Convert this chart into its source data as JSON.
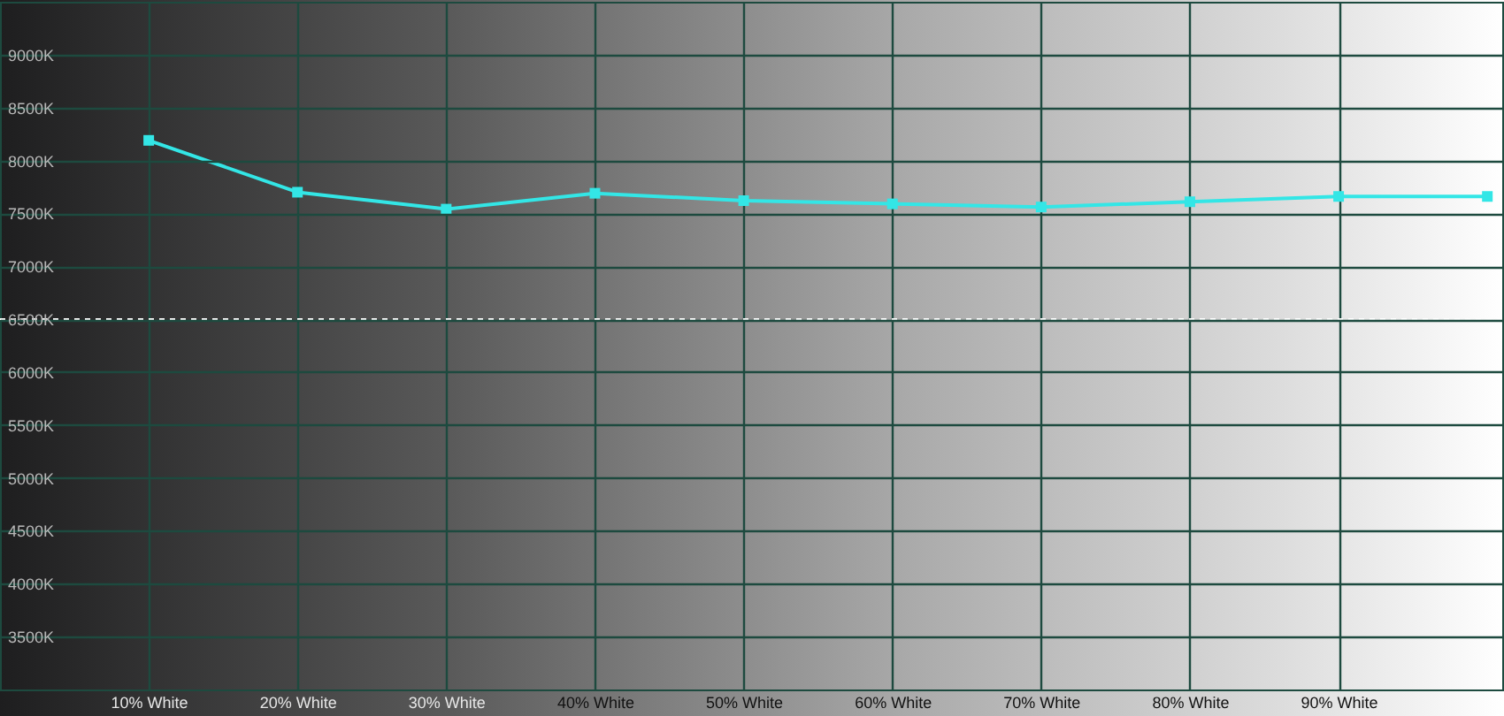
{
  "chart_data": {
    "type": "line",
    "x": [
      10,
      20,
      30,
      40,
      50,
      60,
      70,
      80,
      90,
      100
    ],
    "series": [
      {
        "color": "#33e6e6",
        "values": [
          8190,
          7700,
          7540,
          7690,
          7620,
          7590,
          7560,
          7610,
          7660,
          7660
        ]
      }
    ],
    "xlim": [
      0,
      101
    ],
    "xticks": [
      {
        "value": 10,
        "label": "10% White"
      },
      {
        "value": 20,
        "label": "20% White"
      },
      {
        "value": 30,
        "label": "30% White"
      },
      {
        "value": 40,
        "label": "40% White"
      },
      {
        "value": 50,
        "label": "50% White"
      },
      {
        "value": 60,
        "label": "60% White"
      },
      {
        "value": 70,
        "label": "70% White"
      },
      {
        "value": 80,
        "label": "80% White"
      },
      {
        "value": 90,
        "label": "90% White"
      }
    ],
    "ylim": [
      3000,
      9500
    ],
    "yticks": [
      {
        "value": 3500,
        "label": "3500K"
      },
      {
        "value": 4000,
        "label": "4000K"
      },
      {
        "value": 4500,
        "label": "4500K"
      },
      {
        "value": 5000,
        "label": "5000K"
      },
      {
        "value": 5500,
        "label": "5500K"
      },
      {
        "value": 6000,
        "label": "6000K"
      },
      {
        "value": 6500,
        "label": "6500K"
      },
      {
        "value": 7000,
        "label": "7000K"
      },
      {
        "value": 7500,
        "label": "7500K"
      },
      {
        "value": 8000,
        "label": "8000K"
      },
      {
        "value": 8500,
        "label": "8500K"
      },
      {
        "value": 9000,
        "label": "9000K"
      }
    ],
    "ref_lines": [
      {
        "axis": "y",
        "value": 6500,
        "color": "#ffffff",
        "line_style": "dashed"
      }
    ],
    "grid": true,
    "marker": "square",
    "line_style": "solid"
  }
}
